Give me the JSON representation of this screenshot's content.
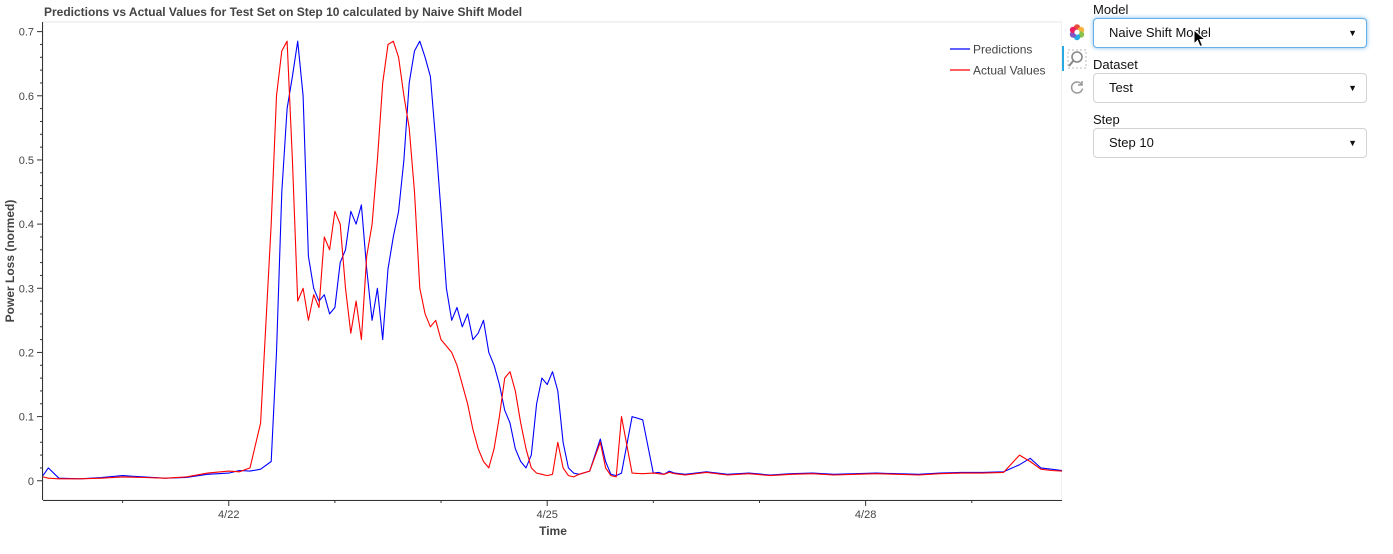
{
  "chart_data": {
    "type": "line",
    "title": "Predictions vs Actual Values for Test Set on Step 10 calculated by Naive Shift Model",
    "xlabel": "Time",
    "ylabel": "Power Loss (normed)",
    "xlim": [
      20.25,
      29.85
    ],
    "ylim": [
      -0.03,
      0.715
    ],
    "x_ticks": [
      22,
      25,
      28
    ],
    "x_tick_labels": [
      "4/22",
      "4/25",
      "4/28"
    ],
    "y_ticks": [
      0,
      0.1,
      0.2,
      0.3,
      0.4,
      0.5,
      0.6,
      0.7
    ],
    "y_tick_labels": [
      "0",
      "0.1",
      "0.2",
      "0.3",
      "0.4",
      "0.5",
      "0.6",
      "0.7"
    ],
    "grid": false,
    "legend_position": "top-right",
    "series": [
      {
        "name": "Predictions",
        "color": "#0000ff",
        "x": [
          20.25,
          20.3,
          20.4,
          20.6,
          20.8,
          21,
          21.2,
          21.4,
          21.6,
          21.8,
          22,
          22.1,
          22.2,
          22.3,
          22.4,
          22.45,
          22.5,
          22.55,
          22.6,
          22.65,
          22.7,
          22.75,
          22.8,
          22.85,
          22.9,
          22.95,
          23,
          23.05,
          23.1,
          23.15,
          23.2,
          23.25,
          23.3,
          23.35,
          23.4,
          23.45,
          23.5,
          23.55,
          23.6,
          23.65,
          23.7,
          23.75,
          23.8,
          23.85,
          23.9,
          23.95,
          24,
          24.05,
          24.1,
          24.15,
          24.2,
          24.25,
          24.3,
          24.35,
          24.4,
          24.45,
          24.5,
          24.55,
          24.6,
          24.65,
          24.7,
          24.75,
          24.8,
          24.85,
          24.9,
          24.95,
          25,
          25.05,
          25.1,
          25.15,
          25.2,
          25.25,
          25.3,
          25.4,
          25.5,
          25.55,
          25.6,
          25.65,
          25.7,
          25.8,
          25.9,
          26,
          26.05,
          26.1,
          26.15,
          26.2,
          26.3,
          26.5,
          26.7,
          26.9,
          27.1,
          27.3,
          27.5,
          27.7,
          27.9,
          28.1,
          28.3,
          28.5,
          28.7,
          28.9,
          29.1,
          29.3,
          29.45,
          29.55,
          29.65,
          29.75,
          29.85
        ],
        "y": [
          0.008,
          0.02,
          0.004,
          0.003,
          0.005,
          0.008,
          0.006,
          0.004,
          0.005,
          0.01,
          0.012,
          0.016,
          0.015,
          0.018,
          0.03,
          0.2,
          0.45,
          0.58,
          0.63,
          0.685,
          0.6,
          0.35,
          0.3,
          0.28,
          0.29,
          0.26,
          0.27,
          0.34,
          0.36,
          0.42,
          0.4,
          0.43,
          0.33,
          0.25,
          0.3,
          0.22,
          0.33,
          0.38,
          0.42,
          0.5,
          0.62,
          0.67,
          0.685,
          0.66,
          0.63,
          0.53,
          0.42,
          0.3,
          0.25,
          0.27,
          0.24,
          0.26,
          0.22,
          0.23,
          0.25,
          0.2,
          0.18,
          0.15,
          0.11,
          0.09,
          0.05,
          0.03,
          0.02,
          0.04,
          0.12,
          0.16,
          0.15,
          0.17,
          0.14,
          0.06,
          0.02,
          0.012,
          0.01,
          0.015,
          0.065,
          0.03,
          0.01,
          0.008,
          0.012,
          0.1,
          0.095,
          0.012,
          0.013,
          0.01,
          0.015,
          0.012,
          0.01,
          0.014,
          0.01,
          0.012,
          0.009,
          0.011,
          0.012,
          0.01,
          0.011,
          0.012,
          0.011,
          0.01,
          0.012,
          0.013,
          0.013,
          0.014,
          0.025,
          0.035,
          0.02,
          0.018,
          0.016
        ]
      },
      {
        "name": "Actual Values",
        "color": "#ff0000",
        "x": [
          20.25,
          20.3,
          20.4,
          20.6,
          20.8,
          21,
          21.2,
          21.4,
          21.6,
          21.8,
          22,
          22.1,
          22.2,
          22.3,
          22.4,
          22.45,
          22.5,
          22.55,
          22.6,
          22.65,
          22.7,
          22.75,
          22.8,
          22.85,
          22.9,
          22.95,
          23,
          23.05,
          23.1,
          23.15,
          23.2,
          23.25,
          23.3,
          23.35,
          23.4,
          23.45,
          23.5,
          23.55,
          23.6,
          23.65,
          23.7,
          23.75,
          23.8,
          23.85,
          23.9,
          23.95,
          24,
          24.05,
          24.1,
          24.15,
          24.2,
          24.25,
          24.3,
          24.35,
          24.4,
          24.45,
          24.5,
          24.55,
          24.6,
          24.65,
          24.7,
          24.75,
          24.8,
          24.85,
          24.9,
          24.95,
          25,
          25.05,
          25.1,
          25.15,
          25.2,
          25.25,
          25.3,
          25.4,
          25.5,
          25.55,
          25.6,
          25.65,
          25.7,
          25.8,
          25.9,
          26,
          26.05,
          26.1,
          26.15,
          26.2,
          26.3,
          26.5,
          26.7,
          26.9,
          27.1,
          27.3,
          27.5,
          27.7,
          27.9,
          28.1,
          28.3,
          28.5,
          28.7,
          28.9,
          29.1,
          29.3,
          29.45,
          29.55,
          29.65,
          29.75,
          29.85
        ],
        "y": [
          0.006,
          0.004,
          0.003,
          0.003,
          0.004,
          0.006,
          0.005,
          0.004,
          0.006,
          0.012,
          0.015,
          0.014,
          0.02,
          0.09,
          0.4,
          0.6,
          0.67,
          0.685,
          0.5,
          0.28,
          0.3,
          0.25,
          0.29,
          0.27,
          0.38,
          0.36,
          0.42,
          0.4,
          0.3,
          0.23,
          0.28,
          0.22,
          0.35,
          0.4,
          0.5,
          0.62,
          0.68,
          0.685,
          0.66,
          0.6,
          0.55,
          0.45,
          0.3,
          0.26,
          0.24,
          0.25,
          0.22,
          0.21,
          0.2,
          0.18,
          0.15,
          0.12,
          0.08,
          0.05,
          0.03,
          0.02,
          0.05,
          0.1,
          0.16,
          0.17,
          0.14,
          0.09,
          0.05,
          0.02,
          0.012,
          0.01,
          0.008,
          0.01,
          0.06,
          0.02,
          0.008,
          0.006,
          0.01,
          0.015,
          0.06,
          0.02,
          0.008,
          0.006,
          0.1,
          0.012,
          0.011,
          0.012,
          0.011,
          0.01,
          0.013,
          0.011,
          0.009,
          0.013,
          0.009,
          0.011,
          0.008,
          0.01,
          0.011,
          0.009,
          0.01,
          0.011,
          0.01,
          0.009,
          0.011,
          0.012,
          0.012,
          0.013,
          0.04,
          0.03,
          0.018,
          0.016,
          0.015
        ]
      }
    ]
  },
  "toolbar": {
    "icons": [
      "bokeh-logo-icon",
      "zoom-tool-icon",
      "reset-icon"
    ]
  },
  "controls": {
    "model": {
      "label": "Model",
      "value": "Naive Shift Model"
    },
    "dataset": {
      "label": "Dataset",
      "value": "Test"
    },
    "step": {
      "label": "Step",
      "value": "Step 10"
    }
  }
}
